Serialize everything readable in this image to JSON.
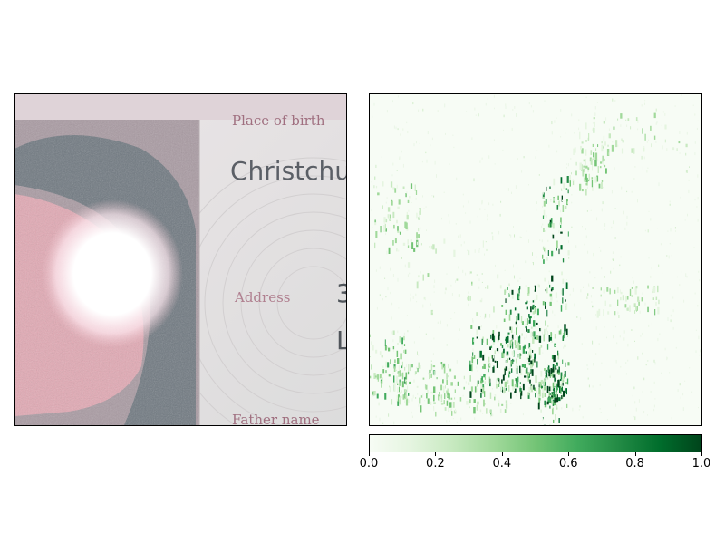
{
  "left_image": {
    "card_text": {
      "place_of_birth_label": "Place of birth",
      "place_of_birth_value": "Christchu",
      "address_label": "Address",
      "address_value_line1": "3",
      "address_value_line2": "L",
      "father_name_label": "Father name"
    }
  },
  "right_image": {
    "type": "heatmap",
    "colormap": "Greens"
  },
  "colorbar": {
    "min": 0.0,
    "max": 1.0,
    "ticks": [
      "0.0",
      "0.2",
      "0.4",
      "0.6",
      "0.8",
      "1.0"
    ],
    "colors": [
      "#f7fcf5",
      "#00441b"
    ]
  }
}
